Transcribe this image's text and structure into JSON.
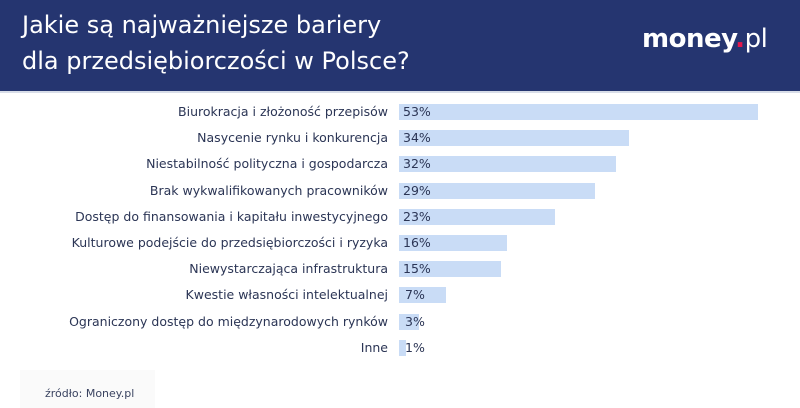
{
  "header": {
    "title_line1": "Jakie są najważniejsze bariery",
    "title_line2": "dla przedsiębiorczości w Polsce?",
    "logo_main": "money",
    "logo_dot": ".",
    "logo_tld": "pl"
  },
  "colors": {
    "header_bg": "#253570",
    "bar": "#c9dcf6",
    "text": "#2b3555",
    "logo_dot": "#e5174b"
  },
  "footer": {
    "source": "źródło: Money.pl"
  },
  "chart_data": {
    "type": "bar",
    "orientation": "horizontal",
    "title": "Jakie są najważniejsze bariery dla przedsiębiorczości w Polsce?",
    "xlabel": "",
    "ylabel": "",
    "unit": "%",
    "grid": false,
    "legend": null,
    "categories": [
      "Biurokracja i złożoność przepisów",
      "Nasycenie rynku i konkurencja",
      "Niestabilność polityczna i gospodarcza",
      "Brak wykwalifikowanych pracowników",
      "Dostęp do finansowania i kapitału inwestycyjnego",
      "Kulturowe podejście do przedsiębiorczości i ryzyka",
      "Niewystarczająca infrastruktura",
      "Kwestie własności intelektualnej",
      "Ograniczony dostęp do międzynarodowych rynków",
      "Inne"
    ],
    "values": [
      53,
      34,
      32,
      29,
      23,
      16,
      15,
      7,
      3,
      1
    ],
    "value_labels": [
      "53%",
      "34%",
      "32%",
      "29%",
      "23%",
      "16%",
      "15%",
      "7%",
      "3%",
      "1%"
    ],
    "source": "źródło: Money.pl"
  }
}
